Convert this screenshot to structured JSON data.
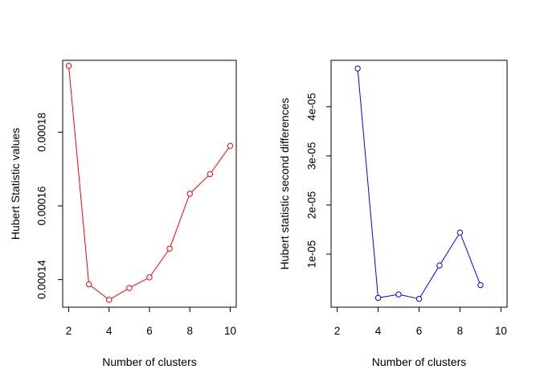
{
  "chart_data": [
    {
      "type": "line",
      "markers": "open-circle",
      "xlabel": "Number of clusters",
      "ylabel": "Hubert Statistic values",
      "xlim": [
        1.7,
        10.3
      ],
      "ylim": [
        0.0001325,
        0.0001995
      ],
      "xticks": [
        2,
        4,
        6,
        8,
        10
      ],
      "xtick_labels": [
        "2",
        "4",
        "6",
        "8",
        "10"
      ],
      "yticks": [
        0.00014,
        0.00016,
        0.00018
      ],
      "ytick_labels": [
        "0.00014",
        "0.00016",
        "0.00018"
      ],
      "x": [
        2,
        3,
        4,
        5,
        6,
        7,
        8,
        9,
        10
      ],
      "values": [
        0.000198,
        0.0001387,
        0.0001345,
        0.0001377,
        0.0001406,
        0.0001484,
        0.0001633,
        0.0001686,
        0.0001763
      ],
      "grid": false,
      "color": "#ff0000"
    },
    {
      "type": "line",
      "markers": "open-circle",
      "xlabel": "Number of clusters",
      "ylabel": "Hubert statistic second differences",
      "xlim": [
        1.7,
        10.3
      ],
      "ylim": [
        -8e-07,
        4.946e-05
      ],
      "xticks": [
        2,
        4,
        6,
        8,
        10
      ],
      "xtick_labels": [
        "2",
        "4",
        "6",
        "8",
        "10"
      ],
      "yticks": [
        1e-05,
        2e-05,
        3e-05,
        4e-05
      ],
      "ytick_labels": [
        "1e-05",
        "2e-05",
        "3e-05",
        "4e-05"
      ],
      "x": [
        3,
        4,
        5,
        6,
        7,
        8,
        9
      ],
      "values": [
        4.78e-05,
        1.1e-06,
        1.8e-06,
        9e-07,
        7.7e-06,
        1.44e-05,
        3.7e-06
      ],
      "grid": false,
      "color": "#0000ff"
    }
  ]
}
